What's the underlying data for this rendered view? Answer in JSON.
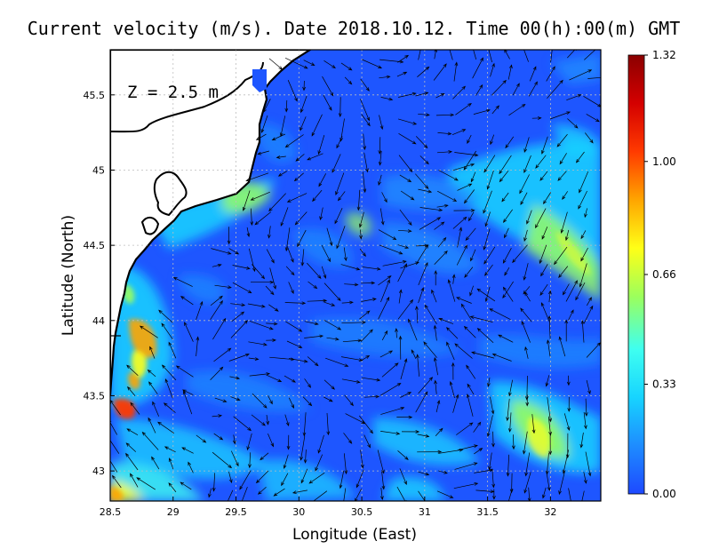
{
  "title": "Current velocity (m/s). Date 2018.10.12. Time 00(h):00(m) GMT",
  "depth_label": "Z = 2.5 m",
  "x_axis": {
    "label": "Longitude (East)",
    "range": [
      28.5,
      32.4
    ],
    "ticks": [
      {
        "value": 28.5,
        "label": "28.5"
      },
      {
        "value": 29,
        "label": "29"
      },
      {
        "value": 29.5,
        "label": "29.5"
      },
      {
        "value": 30,
        "label": "30"
      },
      {
        "value": 30.5,
        "label": "30.5"
      },
      {
        "value": 31,
        "label": "31"
      },
      {
        "value": 31.5,
        "label": "31.5"
      },
      {
        "value": 32,
        "label": "32"
      }
    ]
  },
  "y_axis": {
    "label": "Latitude (North)",
    "range": [
      42.8,
      45.8
    ],
    "ticks": [
      {
        "value": 43,
        "label": "43"
      },
      {
        "value": 43.5,
        "label": "43.5"
      },
      {
        "value": 44,
        "label": "44"
      },
      {
        "value": 44.5,
        "label": "44.5"
      },
      {
        "value": 45,
        "label": "45"
      },
      {
        "value": 45.5,
        "label": "45.5"
      }
    ]
  },
  "colorbar": {
    "range": [
      0.0,
      1.32
    ],
    "ticks": [
      {
        "value": 0.0,
        "label": "0.00"
      },
      {
        "value": 0.33,
        "label": "0.33"
      },
      {
        "value": 0.66,
        "label": "0.66"
      },
      {
        "value": 1.0,
        "label": "1.00"
      },
      {
        "value": 1.32,
        "label": "1.32"
      }
    ],
    "colormap": [
      "#1e49ff",
      "#1e8cff",
      "#17d4ff",
      "#3ffff0",
      "#9cff5c",
      "#ffff17",
      "#ffa500",
      "#ff3a00",
      "#d40000",
      "#8b0000"
    ]
  },
  "colors": {
    "land": "#ffffff",
    "sea_background": "#1e56ff",
    "coastline": "#000000",
    "grid": "#bdbdbd"
  }
}
